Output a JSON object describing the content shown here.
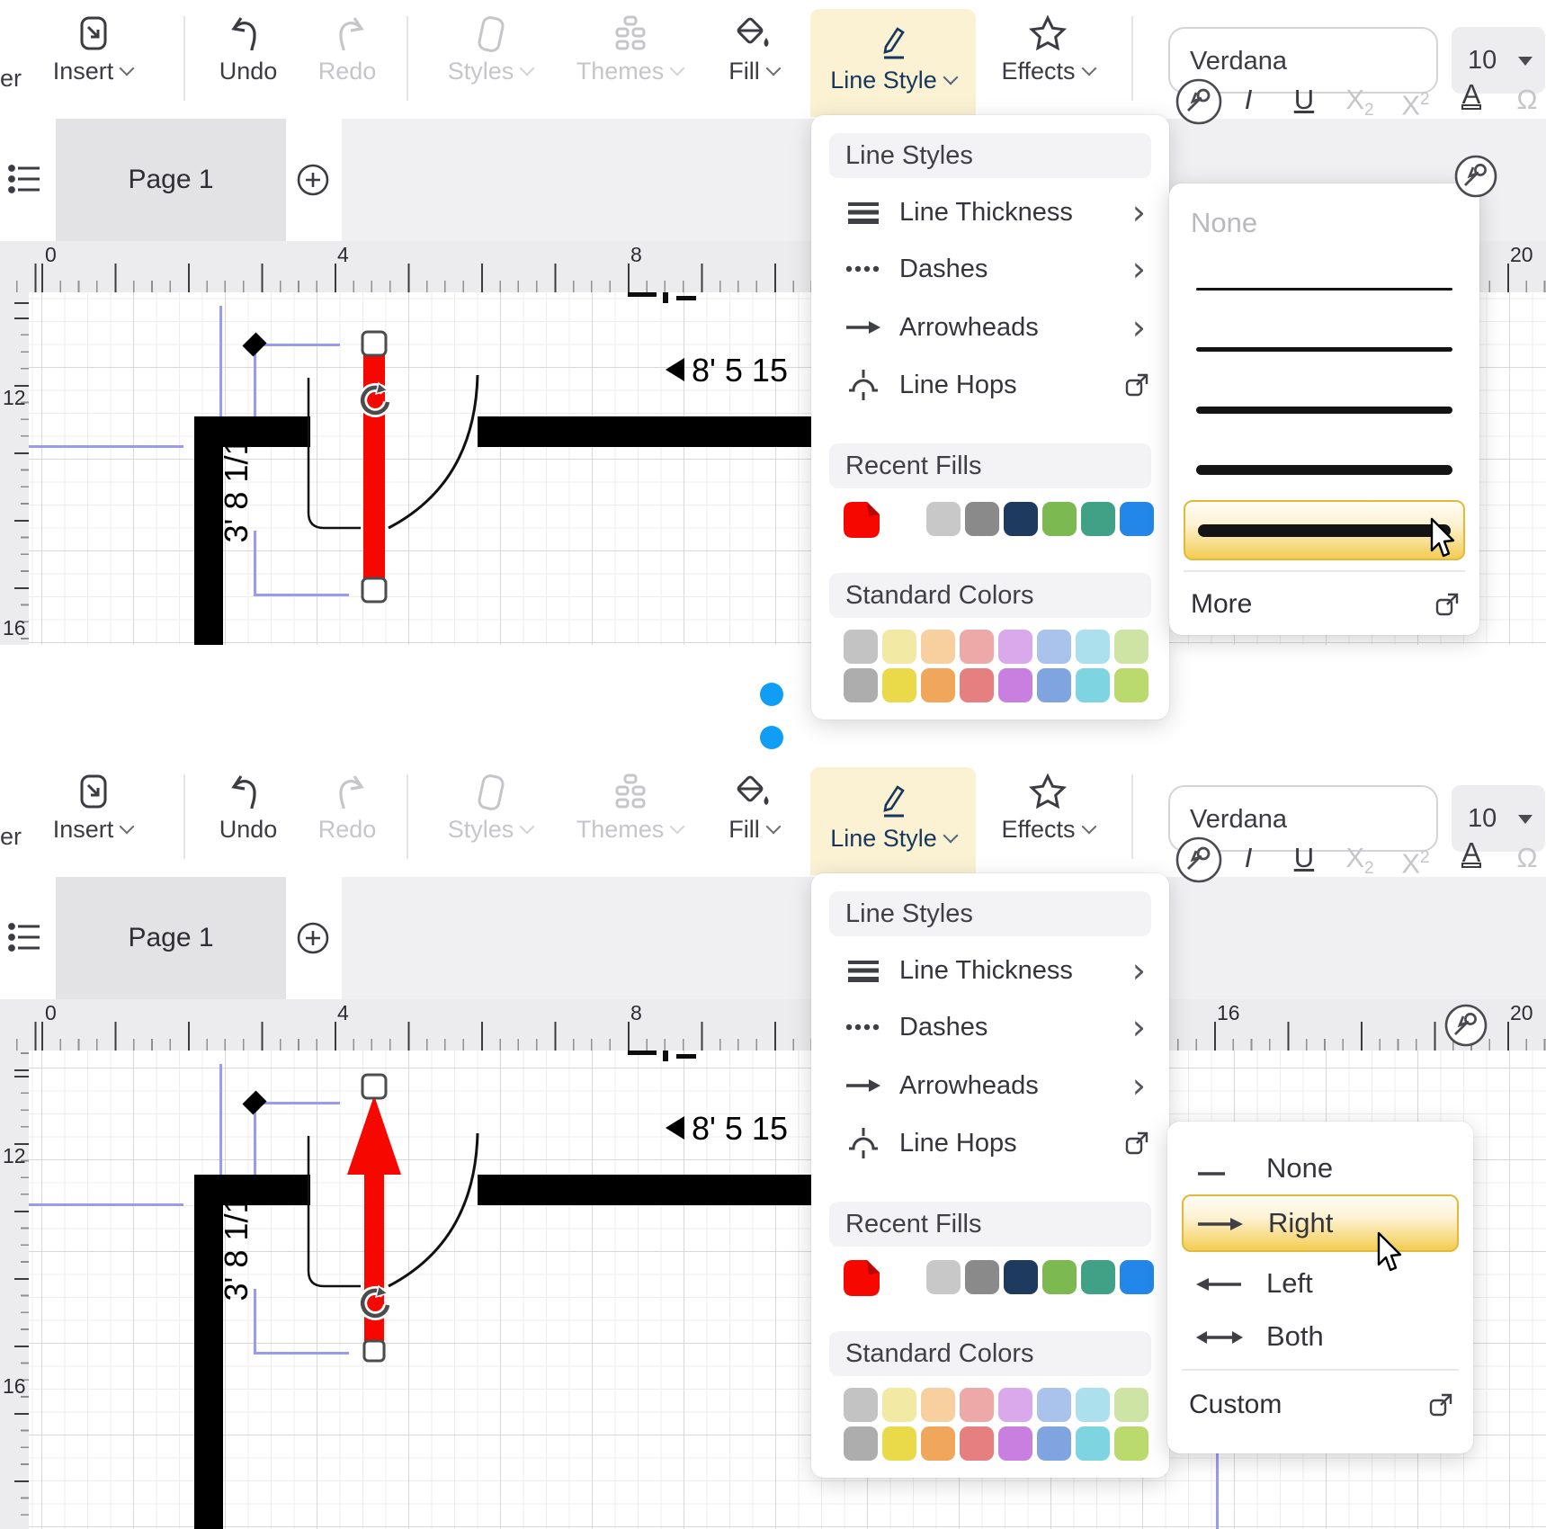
{
  "toolbar": {
    "partial_label": "er",
    "insert": "Insert",
    "undo": "Undo",
    "redo": "Redo",
    "styles": "Styles",
    "themes": "Themes",
    "fill": "Fill",
    "line_style": "Line Style",
    "effects": "Effects",
    "font_name": "Verdana",
    "font_size": "10"
  },
  "page_tab": "Page 1",
  "ruler": {
    "h0": "0",
    "h4": "4",
    "h8": "8",
    "h16": "16",
    "h20": "20",
    "v12": "12",
    "v16": "16"
  },
  "canvas": {
    "width_dim": "8' 5 15",
    "height_dim": "3' 8 1/16"
  },
  "panel": {
    "title": "Line Styles",
    "line_thickness": "Line Thickness",
    "dashes": "Dashes",
    "arrowheads": "Arrowheads",
    "line_hops": "Line Hops",
    "recent_fills": "Recent Fills",
    "standard_colors": "Standard Colors",
    "current_fill": "#f60800",
    "recent": [
      "#c8c8c8",
      "#8a8a8a",
      "#1e3a5f",
      "#7cb950",
      "#41a186",
      "#2287e8"
    ],
    "standard_row1": [
      "#c3c3c3",
      "#f1e9a4",
      "#f8cf9e",
      "#eda8a8",
      "#d9a9ec",
      "#a9c3ec",
      "#abe0ec",
      "#cde4a4"
    ],
    "standard_row2": [
      "#adadad",
      "#ead949",
      "#f0a75c",
      "#e67f7f",
      "#c87fe0",
      "#7fa4e0",
      "#7fd4e2",
      "#bada6e"
    ]
  },
  "thickness_menu": {
    "none": "None",
    "more": "More",
    "items": [
      {
        "h": 3
      },
      {
        "h": 5
      },
      {
        "h": 8
      },
      {
        "h": 11
      },
      {
        "h": 14,
        "selected": true
      }
    ]
  },
  "arrowhead_menu": {
    "none": "None",
    "right": "Right",
    "left": "Left",
    "both": "Both",
    "custom": "Custom"
  },
  "colors": {
    "selection_bg": "#fbf1d3",
    "selection_text": "#17375e",
    "highlight_border": "#e2b93c",
    "blue_dot": "#0f9df5",
    "guide": "#9a9af2",
    "shape_red": "#f60800"
  }
}
